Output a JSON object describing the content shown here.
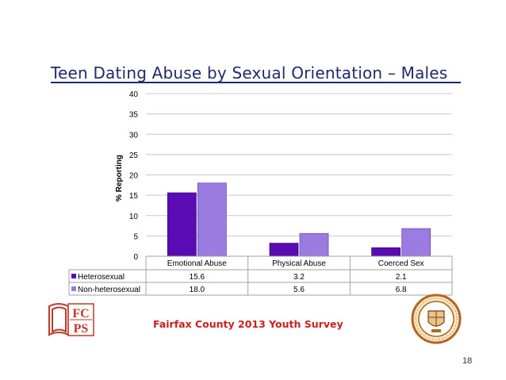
{
  "slide": {
    "title": "Teen Dating Abuse by Sexual Orientation – Males",
    "footer": "Fairfax County 2013 Youth Survey",
    "page_number": "18",
    "logo_text_left": [
      "FC",
      "PS"
    ],
    "seal_text": "COUNTY OF FAIRFAX · VIRGINIA · 1742"
  },
  "colors": {
    "title": "#1f2a6e",
    "heterosexual": "#5a0bb3",
    "non_heterosexual": "#9b7be0",
    "footer": "#cc1f1f",
    "logo": "#c0392b",
    "seal": "#b5651d"
  },
  "chart_data": {
    "type": "bar",
    "categories": [
      "Emotional Abuse",
      "Physical Abuse",
      "Coerced Sex"
    ],
    "series": [
      {
        "name": "Heterosexual",
        "values": [
          15.6,
          3.2,
          2.1
        ],
        "labels": [
          "15.6",
          "3.2",
          "2.1"
        ]
      },
      {
        "name": "Non-heterosexual",
        "values": [
          18.0,
          5.6,
          6.8
        ],
        "labels": [
          "18.0",
          "5.6",
          "6.8"
        ]
      }
    ],
    "ylabel": "% Reporting",
    "ylim": [
      0,
      40
    ],
    "yticks": [
      0,
      5,
      10,
      15,
      20,
      25,
      30,
      35,
      40
    ],
    "grid": true,
    "legend": "data-table"
  }
}
